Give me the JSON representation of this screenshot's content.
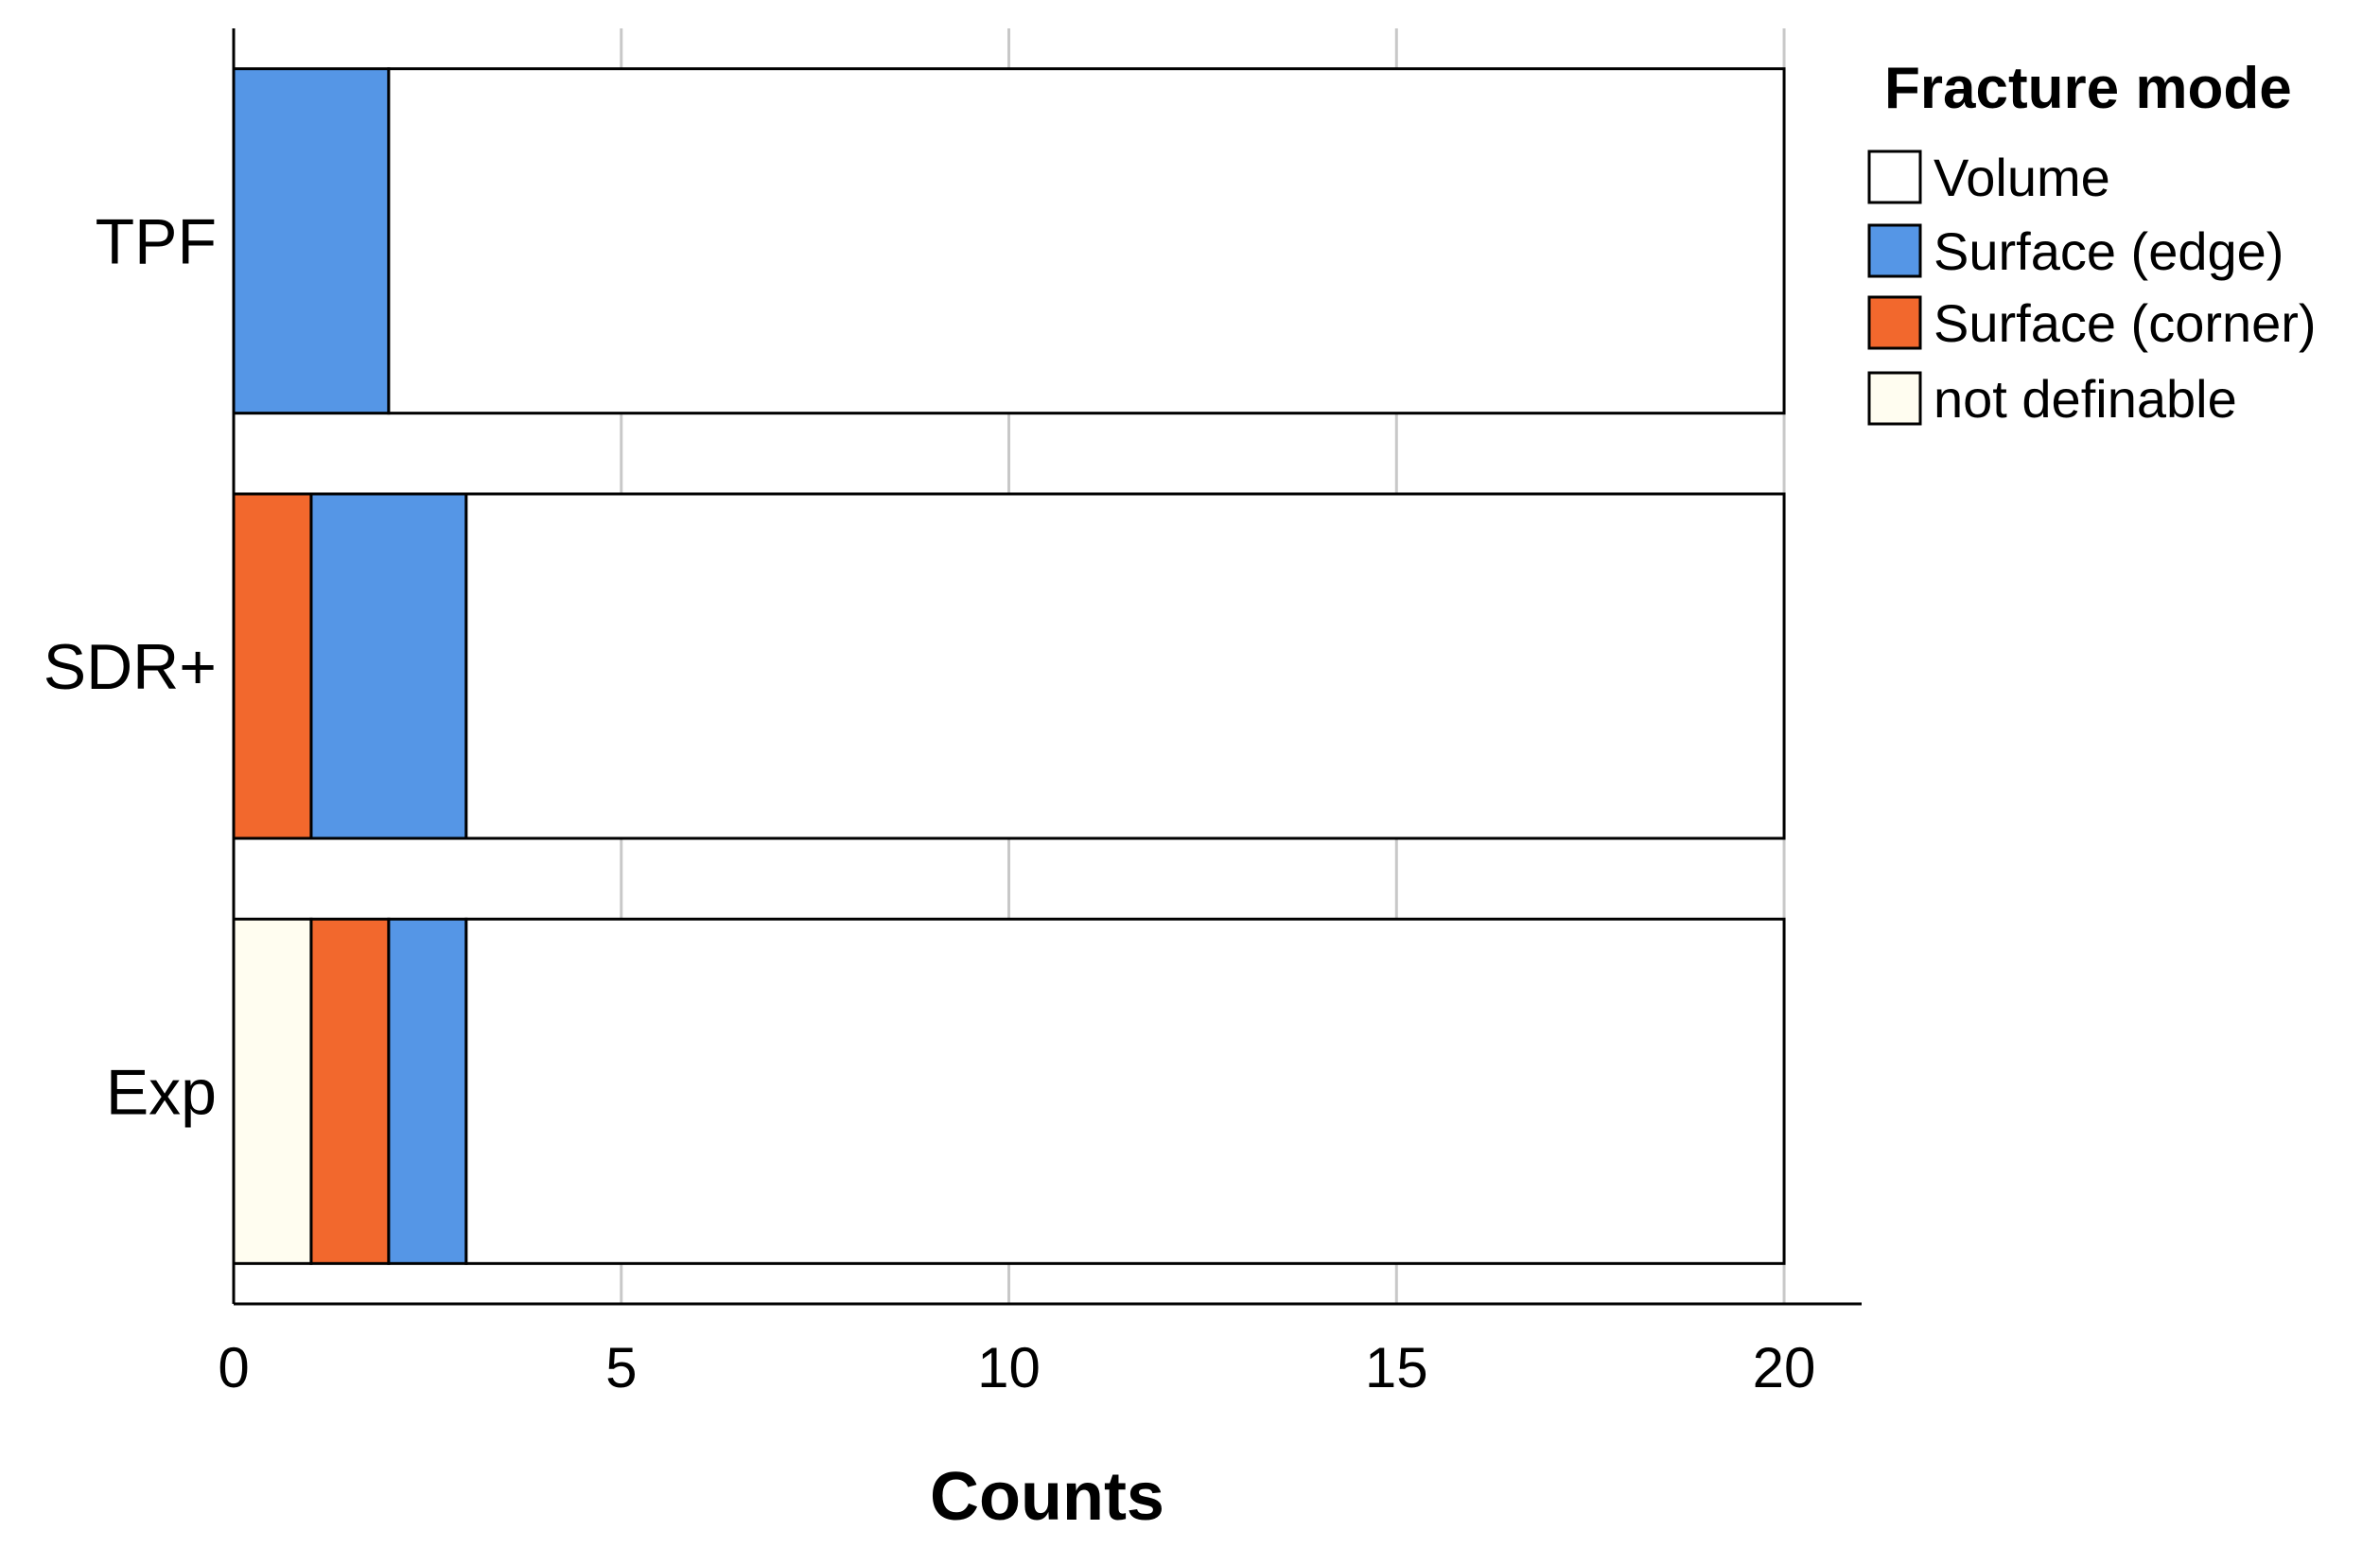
{
  "chart_data": {
    "type": "bar",
    "orientation": "horizontal",
    "stacked": true,
    "categories": [
      "TPF",
      "SDR+",
      "Exp"
    ],
    "series": [
      {
        "name": "not definable",
        "color": "#fffdf0",
        "values": [
          0,
          0,
          1
        ]
      },
      {
        "name": "Surface (corner)",
        "color": "#f2682d",
        "values": [
          0,
          1,
          1
        ]
      },
      {
        "name": "Surface (edge)",
        "color": "#5596e6",
        "values": [
          2,
          2,
          1
        ]
      },
      {
        "name": "Volume",
        "color": "#ffffff",
        "values": [
          18,
          17,
          17
        ]
      }
    ],
    "legend_order": [
      "Volume",
      "Surface (edge)",
      "Surface (corner)",
      "not definable"
    ],
    "xlabel": "Counts",
    "ylabel": "",
    "xlim": [
      0,
      21
    ],
    "xticks": [
      0,
      5,
      10,
      15,
      20
    ],
    "grid": "vertical",
    "legend": {
      "title": "Fracture mode",
      "placement": "top-right"
    }
  }
}
